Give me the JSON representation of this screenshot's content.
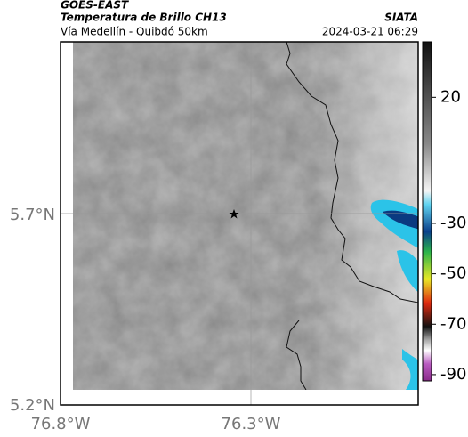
{
  "header": {
    "satellite": "GOES-EAST",
    "product": "Temperatura de Brillo CH13",
    "agency": "SIATA",
    "region": "Vía Medellín - Quibdó 50km",
    "timestamp": "2024-03-21 06:29"
  },
  "map": {
    "lat_ticks": [
      "5.7°N",
      "5.2°N"
    ],
    "lon_ticks": [
      "76.8°W",
      "76.3°W"
    ]
  },
  "colorbar": {
    "clim": [
      42,
      -92.5
    ],
    "ticks": [
      20,
      -30,
      -50,
      -70,
      -90
    ]
  }
}
